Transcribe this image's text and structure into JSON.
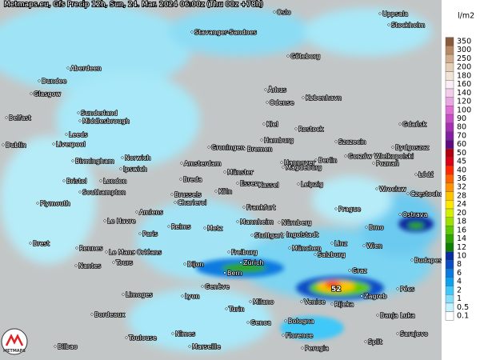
{
  "header": {
    "title": "Metmaps.eu, Gfs Precip 12h, Sun, 24. Mar. 2024 06:00z (Thu 00z +78h)"
  },
  "legend": {
    "unit": "l/m2",
    "items": [
      {
        "label": 350,
        "color": "#8a5a3a"
      },
      {
        "label": 300,
        "color": "#b88a64"
      },
      {
        "label": 250,
        "color": "#d2ae8c"
      },
      {
        "label": 200,
        "color": "#e6cfb8"
      },
      {
        "label": 180,
        "color": "#f2e4d8"
      },
      {
        "label": 160,
        "color": "#fbeef4"
      },
      {
        "label": 140,
        "color": "#f4cdec"
      },
      {
        "label": 120,
        "color": "#eaa6e2"
      },
      {
        "label": 100,
        "color": "#e070d6"
      },
      {
        "label": 90,
        "color": "#c84ec6"
      },
      {
        "label": 80,
        "color": "#a630b4"
      },
      {
        "label": 70,
        "color": "#8220a2"
      },
      {
        "label": 60,
        "color": "#5e0a82"
      },
      {
        "label": 50,
        "color": "#b00010"
      },
      {
        "label": 45,
        "color": "#dc0010"
      },
      {
        "label": 40,
        "color": "#ff2a00"
      },
      {
        "label": 36,
        "color": "#ff6400"
      },
      {
        "label": 32,
        "color": "#ff9400"
      },
      {
        "label": 28,
        "color": "#ffc400"
      },
      {
        "label": 24,
        "color": "#ffe800"
      },
      {
        "label": 20,
        "color": "#d4f000"
      },
      {
        "label": 18,
        "color": "#9ee000"
      },
      {
        "label": 16,
        "color": "#5ec800"
      },
      {
        "label": 14,
        "color": "#2ea400"
      },
      {
        "label": 12,
        "color": "#0e7e00"
      },
      {
        "label": 10,
        "color": "#0a2c9e"
      },
      {
        "label": 8,
        "color": "#0a4ec6"
      },
      {
        "label": 6,
        "color": "#0a7ae0"
      },
      {
        "label": 4,
        "color": "#08a2f0"
      },
      {
        "label": 2,
        "color": "#40c8f8"
      },
      {
        "label": 1,
        "color": "#84e0fc"
      },
      {
        "label": 0.5,
        "color": "#c4f2fe"
      },
      {
        "label": 0.1,
        "color": "#ffffff"
      }
    ]
  },
  "map": {
    "max_label": "52",
    "logo": "METMAPS",
    "cities": [
      "Oslo",
      "Uppsala",
      "Stockholm",
      "Stavanger-Sandnes",
      "Göteborg",
      "Aberdeen",
      "Dundee",
      "Glasgow",
      "Århus",
      "Odense",
      "København",
      "Sunderland",
      "Middlesbrough",
      "Belfast",
      "Kiel",
      "Rostock",
      "Gdańsk",
      "Leeds",
      "Dublin",
      "Liverpool",
      "Hamburg",
      "Szczecin",
      "Groningen",
      "Bremen",
      "Bydgoszcz",
      "Norwich",
      "Birmingham",
      "Gorzów Wielkopolski",
      "Ipswich",
      "Amsterdam",
      "Hannover",
      "Berlin",
      "Poznań",
      "Münster",
      "Magdeburg",
      "Łódź",
      "Bristol",
      "London",
      "Breda",
      "Essen",
      "Kassel",
      "Leipzig",
      "Southampton",
      "Brussels",
      "Köln",
      "Wrocław",
      "Częstochowa",
      "Charleroi",
      "Plymouth",
      "Frankfurt",
      "Prague",
      "Amiens",
      "Ostrava",
      "Le Havre",
      "Mannheim",
      "Nürnberg",
      "Reims",
      "Metz",
      "Paris",
      "Stuttgart",
      "Ingolstadt",
      "Brno",
      "Linz",
      "Wien",
      "Brest",
      "Rennes",
      "Le Mans",
      "Orléans",
      "München",
      "Freiburg",
      "Salzburg",
      "Budapest",
      "Zürich",
      "Tours",
      "Nantes",
      "Dijon",
      "Bern",
      "Graz",
      "Genève",
      "Pécs",
      "Limoges",
      "Lyon",
      "Venice",
      "Rijeka",
      "Zagreb",
      "Milano",
      "Turin",
      "Bordeaux",
      "Banja Luka",
      "Genoa",
      "Bologna",
      "Sarajevo",
      "Toulouse",
      "Nîmes",
      "Florence",
      "Split",
      "Bilbao",
      "Marseille",
      "Perugia"
    ]
  }
}
